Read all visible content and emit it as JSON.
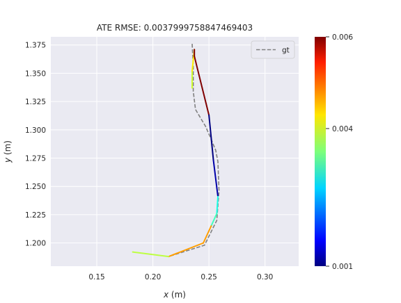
{
  "chart_data": {
    "type": "line",
    "title": "ATE RMSE: 0.0037999758847469403",
    "xlabel_var": "x",
    "xlabel_unit": " (m)",
    "ylabel_var": "y",
    "ylabel_unit": " (m)",
    "xlim": [
      0.109,
      0.33
    ],
    "ylim": [
      1.1795,
      1.3822
    ],
    "xticks": [
      {
        "v": 0.15,
        "label": "0.15"
      },
      {
        "v": 0.2,
        "label": "0.20"
      },
      {
        "v": 0.25,
        "label": "0.25"
      },
      {
        "v": 0.3,
        "label": "0.30"
      }
    ],
    "yticks": [
      {
        "v": 1.2,
        "label": "1.200"
      },
      {
        "v": 1.225,
        "label": "1.225"
      },
      {
        "v": 1.25,
        "label": "1.250"
      },
      {
        "v": 1.275,
        "label": "1.275"
      },
      {
        "v": 1.3,
        "label": "1.300"
      },
      {
        "v": 1.325,
        "label": "1.325"
      },
      {
        "v": 1.35,
        "label": "1.350"
      },
      {
        "v": 1.375,
        "label": "1.375"
      }
    ],
    "grid": true,
    "legend": {
      "position": "top-right",
      "entries": [
        {
          "label": "gt",
          "style": "dashed",
          "color": "#808080"
        }
      ]
    },
    "gt_series": {
      "name": "gt",
      "color": "#808080",
      "x": [
        0.235,
        0.236,
        0.236,
        0.238,
        0.247,
        0.251,
        0.256,
        0.258,
        0.259,
        0.257,
        0.253,
        0.246,
        0.214
      ],
      "y": [
        1.376,
        1.356,
        1.334,
        1.318,
        1.303,
        1.294,
        1.282,
        1.272,
        1.246,
        1.22,
        1.212,
        1.198,
        1.188
      ]
    },
    "est_series": {
      "x": [
        0.235,
        0.235,
        0.237,
        0.237,
        0.244,
        0.25,
        0.254,
        0.258,
        0.257,
        0.252,
        0.245,
        0.214,
        0.182
      ],
      "y": [
        1.337,
        1.352,
        1.371,
        1.365,
        1.337,
        1.313,
        1.273,
        1.241,
        1.226,
        1.215,
        1.2,
        1.188,
        1.192
      ],
      "error": [
        0.0039,
        0.0042,
        0.006,
        0.006,
        0.006,
        0.001,
        0.0012,
        0.003,
        0.0032,
        0.0046,
        0.0046,
        0.0038,
        0.001
      ]
    },
    "colorbar": {
      "min": 0.001,
      "max": 0.006,
      "ticks": [
        {
          "v": 0.006,
          "label": "0.006"
        },
        {
          "v": 0.004,
          "label": "0.004"
        },
        {
          "v": 0.001,
          "label": "0.001"
        }
      ],
      "colormap": "jet"
    }
  }
}
